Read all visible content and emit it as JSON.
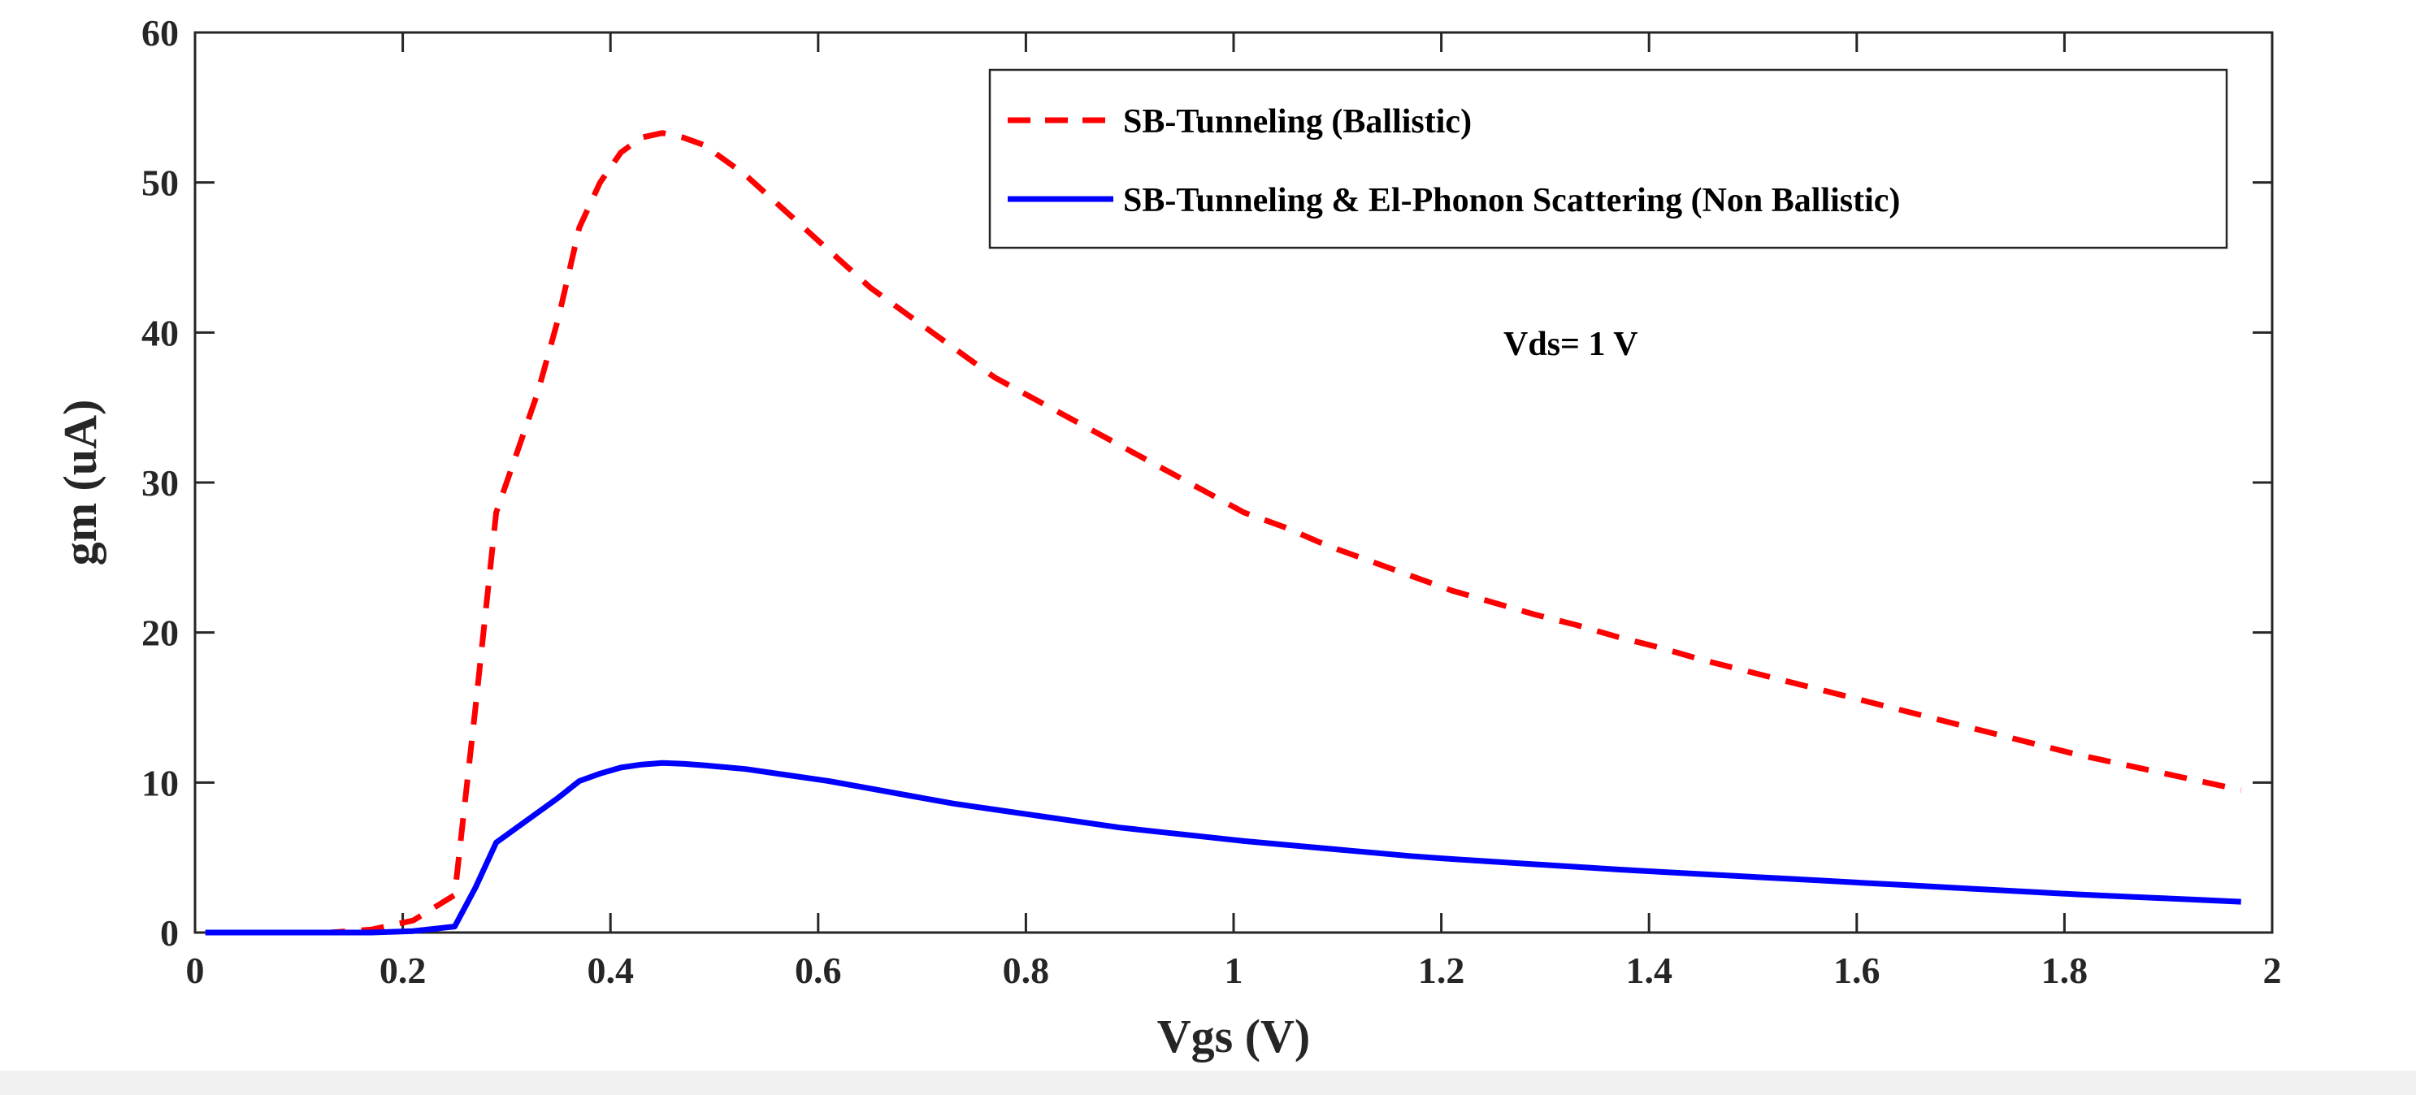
{
  "chart_data": {
    "type": "line",
    "title": "",
    "xlabel": "Vgs (V)",
    "ylabel": "gm (uA)",
    "xlim": [
      0,
      2
    ],
    "ylim": [
      0,
      60
    ],
    "xticks": [
      0,
      0.2,
      0.4,
      0.6,
      0.8,
      1,
      1.2,
      1.4,
      1.6,
      1.8,
      2
    ],
    "xtick_labels": [
      "0",
      "0.2",
      "0.4",
      "0.6",
      "0.8",
      "1",
      "1.2",
      "1.4",
      "1.6",
      "1.8",
      "2"
    ],
    "yticks": [
      0,
      10,
      20,
      30,
      40,
      50,
      60
    ],
    "ytick_labels": [
      "0",
      "10",
      "20",
      "30",
      "40",
      "50",
      "60"
    ],
    "grid": false,
    "legend_position": "top-right",
    "annotation": "Vds= 1 V",
    "series": [
      {
        "name": "SB-Tunneling (Ballistic)",
        "color": "#ff0000",
        "style": "dashed",
        "x": [
          0.01,
          0.05,
          0.09,
          0.13,
          0.17,
          0.21,
          0.25,
          0.27,
          0.29,
          0.31,
          0.33,
          0.35,
          0.37,
          0.39,
          0.41,
          0.43,
          0.45,
          0.47,
          0.49,
          0.53,
          0.57,
          0.61,
          0.65,
          0.69,
          0.73,
          0.77,
          0.81,
          0.85,
          0.89,
          0.93,
          0.97,
          1.01,
          1.05,
          1.09,
          1.13,
          1.17,
          1.21,
          1.25,
          1.29,
          1.33,
          1.37,
          1.41,
          1.45,
          1.49,
          1.53,
          1.57,
          1.61,
          1.65,
          1.69,
          1.73,
          1.77,
          1.81,
          1.85,
          1.89,
          1.93,
          1.97
        ],
        "values": [
          0,
          0,
          0,
          0,
          0.2,
          0.8,
          2.5,
          15,
          28,
          32,
          36,
          41,
          47,
          50,
          52,
          53,
          53.3,
          53,
          52.5,
          50.5,
          48,
          45.5,
          43,
          41,
          39,
          37,
          35.5,
          34,
          32.5,
          31,
          29.5,
          28,
          27,
          25.8,
          24.8,
          23.8,
          22.8,
          22,
          21.2,
          20.5,
          19.7,
          19,
          18.2,
          17.5,
          16.8,
          16.1,
          15.4,
          14.7,
          14,
          13.3,
          12.6,
          11.9,
          11.3,
          10.7,
          10.1,
          9.5
        ]
      },
      {
        "name": "SB-Tunneling & El-Phonon Scattering (Non Ballistic)",
        "color": "#0000ff",
        "style": "solid",
        "x": [
          0.01,
          0.05,
          0.09,
          0.13,
          0.17,
          0.21,
          0.25,
          0.27,
          0.29,
          0.31,
          0.33,
          0.35,
          0.37,
          0.39,
          0.41,
          0.43,
          0.45,
          0.47,
          0.49,
          0.53,
          0.57,
          0.61,
          0.65,
          0.69,
          0.73,
          0.77,
          0.81,
          0.85,
          0.89,
          0.93,
          0.97,
          1.01,
          1.05,
          1.09,
          1.13,
          1.17,
          1.21,
          1.25,
          1.29,
          1.33,
          1.37,
          1.41,
          1.45,
          1.49,
          1.53,
          1.57,
          1.61,
          1.65,
          1.69,
          1.73,
          1.77,
          1.81,
          1.85,
          1.89,
          1.93,
          1.97
        ],
        "values": [
          0,
          0,
          0,
          0,
          0,
          0.1,
          0.4,
          3,
          6,
          7,
          8,
          9,
          10.1,
          10.6,
          11,
          11.2,
          11.3,
          11.25,
          11.15,
          10.9,
          10.5,
          10.1,
          9.6,
          9.1,
          8.6,
          8.2,
          7.8,
          7.4,
          7,
          6.7,
          6.4,
          6.1,
          5.85,
          5.6,
          5.35,
          5.1,
          4.9,
          4.72,
          4.55,
          4.38,
          4.2,
          4.05,
          3.9,
          3.75,
          3.6,
          3.45,
          3.3,
          3.15,
          3,
          2.85,
          2.7,
          2.55,
          2.42,
          2.3,
          2.18,
          2.05
        ]
      }
    ]
  }
}
